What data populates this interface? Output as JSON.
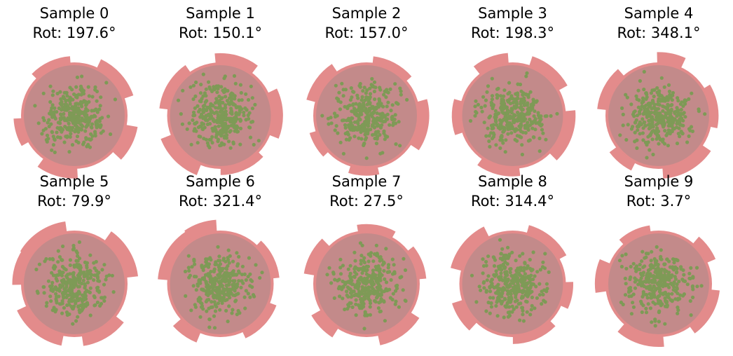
{
  "panels": [
    {
      "title": "Sample 0",
      "subtitle": "Rot: 197.6°"
    },
    {
      "title": "Sample 1",
      "subtitle": "Rot: 150.1°"
    },
    {
      "title": "Sample 2",
      "subtitle": "Rot: 157.0°"
    },
    {
      "title": "Sample 3",
      "subtitle": "Rot: 198.3°"
    },
    {
      "title": "Sample 4",
      "subtitle": "Rot: 348.1°"
    },
    {
      "title": "Sample 5",
      "subtitle": "Rot: 79.9°"
    },
    {
      "title": "Sample 6",
      "subtitle": "Rot: 321.4°"
    },
    {
      "title": "Sample 7",
      "subtitle": "Rot: 27.5°"
    },
    {
      "title": "Sample 8",
      "subtitle": "Rot: 314.4°"
    },
    {
      "title": "Sample 9",
      "subtitle": "Rot: 3.7°"
    }
  ]
}
